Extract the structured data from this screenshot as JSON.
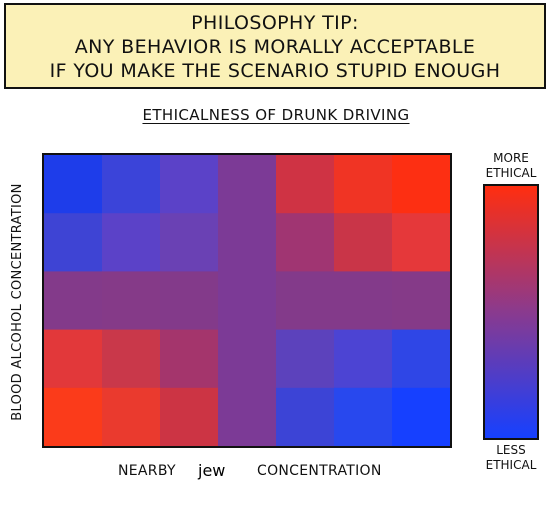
{
  "tip": {
    "line1": "PHILOSOPHY TIP:",
    "line2": "ANY BEHAVIOR IS MORALLY ACCEPTABLE",
    "line3": "IF YOU MAKE THE SCENARIO STUPID ENOUGH",
    "background_color": "#fbf1b7"
  },
  "chart_data": {
    "type": "heatmap",
    "title": "ETHICALNESS OF DRUNK DRIVING",
    "ylabel": "BLOOD ALCOHOL CONCENTRATION",
    "xlabel_before": "NEARBY",
    "xlabel_handwritten": "jew",
    "xlabel_after": "CONCENTRATION",
    "scale_high_label": "MORE ETHICAL",
    "scale_low_label": "LESS ETHICAL",
    "scale_colors": {
      "more_ethical": "#ff2e0f",
      "neutral": "#8a3a8e",
      "less_ethical": "#1640ff"
    },
    "grid": [
      [
        "#1e3dea",
        "#3b44d9",
        "#5b42c8",
        "#7c3a96",
        "#cf3344",
        "#f03424",
        "#fd2f12"
      ],
      [
        "#3e44d4",
        "#5b42c8",
        "#6a41b4",
        "#7c3a96",
        "#a03572",
        "#c93548",
        "#e5383a"
      ],
      [
        "#833a8a",
        "#853a88",
        "#833a8a",
        "#7c3a96",
        "#833a8a",
        "#833a8a",
        "#853a88"
      ],
      [
        "#e2383a",
        "#c9384a",
        "#a4356c",
        "#7c3a96",
        "#5c42bc",
        "#4c44d3",
        "#2f46e6"
      ],
      [
        "#fb3b1a",
        "#ea3a2e",
        "#cc3444",
        "#7c3a96",
        "#3c44d6",
        "#2848ee",
        "#1640ff"
      ]
    ]
  }
}
